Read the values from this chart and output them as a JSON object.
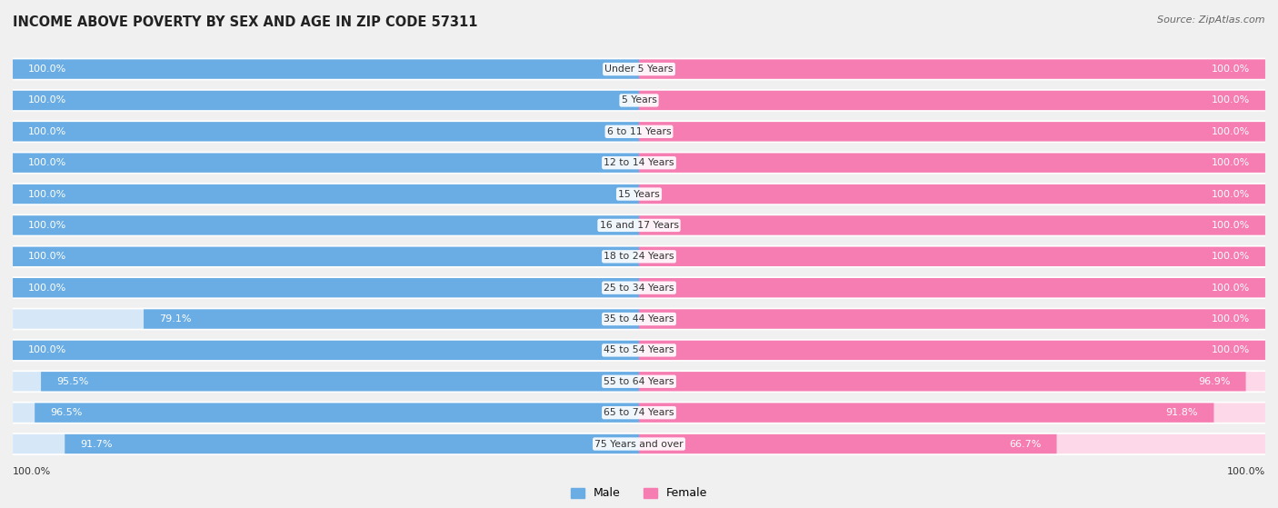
{
  "title": "INCOME ABOVE POVERTY BY SEX AND AGE IN ZIP CODE 57311",
  "source": "Source: ZipAtlas.com",
  "categories": [
    "Under 5 Years",
    "5 Years",
    "6 to 11 Years",
    "12 to 14 Years",
    "15 Years",
    "16 and 17 Years",
    "18 to 24 Years",
    "25 to 34 Years",
    "35 to 44 Years",
    "45 to 54 Years",
    "55 to 64 Years",
    "65 to 74 Years",
    "75 Years and over"
  ],
  "male_values": [
    100.0,
    100.0,
    100.0,
    100.0,
    100.0,
    100.0,
    100.0,
    100.0,
    79.1,
    100.0,
    95.5,
    96.5,
    91.7
  ],
  "female_values": [
    100.0,
    100.0,
    100.0,
    100.0,
    100.0,
    100.0,
    100.0,
    100.0,
    100.0,
    100.0,
    96.9,
    91.8,
    66.7
  ],
  "male_color": "#6aade4",
  "female_color": "#f67db2",
  "male_color_dim": "#d6e8f7",
  "female_color_dim": "#fcd8e8",
  "bar_height": 0.62,
  "bg_color": "#f0f0f0",
  "row_bg_color": "#e8e8e8",
  "title_fontsize": 10.5,
  "label_fontsize": 8.0,
  "category_fontsize": 7.8,
  "source_fontsize": 8.0,
  "x_max": 100.0,
  "bottom_left_label": "100.0%",
  "bottom_right_label": "100.0%",
  "legend_labels": [
    "Male",
    "Female"
  ]
}
